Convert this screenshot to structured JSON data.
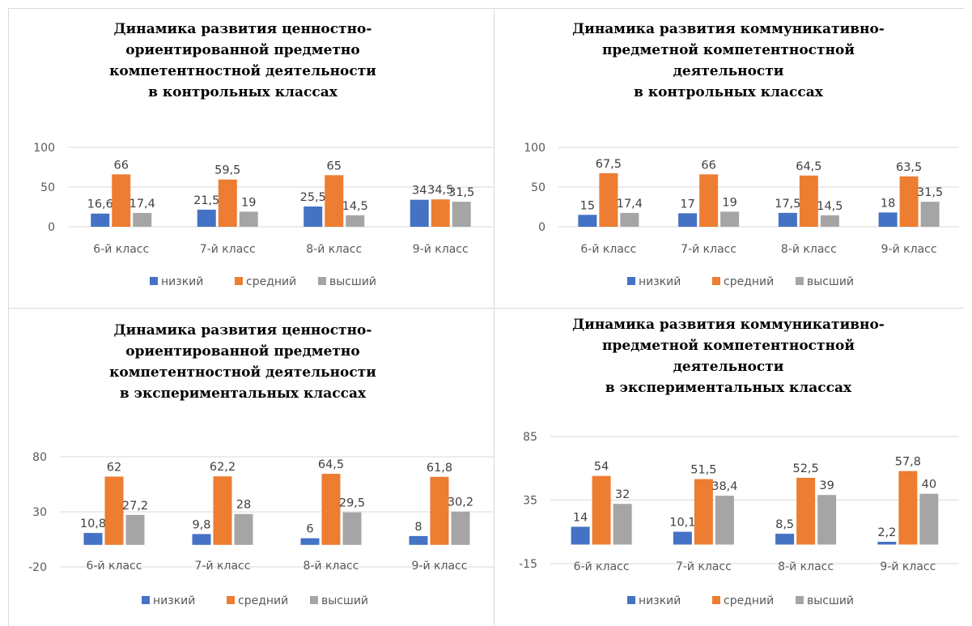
{
  "colors": {
    "low": "#4472C4",
    "mid": "#ED7D31",
    "high": "#A5A5A5",
    "grid": "#d9d9d9",
    "text": "#595959"
  },
  "legend": [
    "низкий",
    "средний",
    "высший"
  ],
  "chart_data": [
    {
      "type": "bar",
      "title": [
        "Динамика развития ценностно-",
        "ориентированной предметно",
        "компетентностной деятельности",
        "в контрольных классах"
      ],
      "categories": [
        "6-й класс",
        "7-й класс",
        "8-й класс",
        "9-й класс"
      ],
      "yticks": [
        0,
        50,
        100
      ],
      "ylim": [
        0,
        100
      ],
      "series": [
        {
          "name": "низкий",
          "values": [
            16.6,
            21.5,
            25.5,
            34
          ]
        },
        {
          "name": "средний",
          "values": [
            66,
            59.5,
            65,
            34.5
          ]
        },
        {
          "name": "высший",
          "values": [
            17.4,
            19,
            14.5,
            31.5
          ]
        }
      ],
      "labels": [
        [
          "16,6",
          "21,5",
          "25,5",
          "34"
        ],
        [
          "66",
          "59,5",
          "65",
          "34,5"
        ],
        [
          "17,4",
          "19",
          "14,5",
          "31,5"
        ]
      ],
      "legend_position": "bottom"
    },
    {
      "type": "bar",
      "title": [
        "Динамика развития коммуникативно-",
        "предметной компетентностной",
        "деятельности",
        "в контрольных классах"
      ],
      "categories": [
        "6-й класс",
        "7-й класс",
        "8-й класс",
        "9-й класс"
      ],
      "yticks": [
        0,
        50,
        100
      ],
      "ylim": [
        0,
        100
      ],
      "series": [
        {
          "name": "низкий",
          "values": [
            15,
            17,
            17.5,
            18
          ]
        },
        {
          "name": "средний",
          "values": [
            67.5,
            66,
            64.5,
            63.5
          ]
        },
        {
          "name": "высший",
          "values": [
            17.4,
            19,
            14.5,
            31.5
          ]
        }
      ],
      "labels": [
        [
          "15",
          "17",
          "17,5",
          "18"
        ],
        [
          "67,5",
          "66",
          "64,5",
          "63,5"
        ],
        [
          "17,4",
          "19",
          "14,5",
          "31,5"
        ]
      ],
      "legend_position": "bottom"
    },
    {
      "type": "bar",
      "title": [
        "Динамика развития ценностно-",
        "ориентированной предметно",
        "компетентностной деятельности",
        "в экспериментальных классах"
      ],
      "categories": [
        "6-й класс",
        "7-й класс",
        "8-й класс",
        "9-й класс"
      ],
      "yticks": [
        -20,
        30,
        80
      ],
      "ylim": [
        -20,
        80
      ],
      "series": [
        {
          "name": "низкий",
          "values": [
            10.8,
            9.8,
            6,
            8
          ]
        },
        {
          "name": "средний",
          "values": [
            62,
            62.2,
            64.5,
            61.8
          ]
        },
        {
          "name": "высший",
          "values": [
            27.2,
            28,
            29.5,
            30.2
          ]
        }
      ],
      "labels": [
        [
          "10,8",
          "9,8",
          "6",
          "8"
        ],
        [
          "62",
          "62,2",
          "64,5",
          "61,8"
        ],
        [
          "27,2",
          "28",
          "29,5",
          "30,2"
        ]
      ],
      "legend_position": "bottom"
    },
    {
      "type": "bar",
      "title": [
        "Динамика развития коммуникативно-",
        "предметной компетентностной",
        "деятельности",
        "в экспериментальных классах"
      ],
      "categories": [
        "6-й класс",
        "7-й класс",
        "8-й класс",
        "9-й класс"
      ],
      "yticks": [
        -15,
        35,
        85
      ],
      "ylim": [
        -15,
        85
      ],
      "series": [
        {
          "name": "низкий",
          "values": [
            14,
            10.1,
            8.5,
            2.2
          ]
        },
        {
          "name": "средний",
          "values": [
            54,
            51.5,
            52.5,
            57.8
          ]
        },
        {
          "name": "высший",
          "values": [
            32,
            38.4,
            39,
            40
          ]
        }
      ],
      "labels": [
        [
          "14",
          "10,1",
          "8,5",
          "2,2"
        ],
        [
          "54",
          "51,5",
          "52,5",
          "57,8"
        ],
        [
          "32",
          "38,4",
          "39",
          "40"
        ]
      ],
      "legend_position": "bottom"
    }
  ]
}
